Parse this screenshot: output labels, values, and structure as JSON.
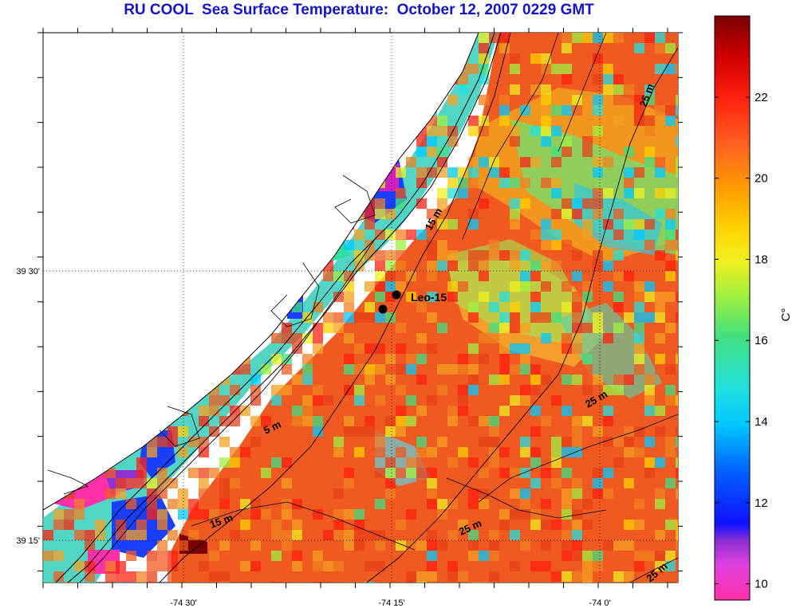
{
  "title": "RU COOL  Sea Surface Temperature:  October 12, 2007 0229 GMT",
  "colorbar": {
    "unit_label": "C°",
    "ticks": [
      "10",
      "12",
      "14",
      "16",
      "18",
      "20",
      "22"
    ],
    "range": [
      9.6,
      24.0
    ]
  },
  "axes": {
    "lon_labels": [
      "-74 30'",
      "-74 15'",
      "-74 0'"
    ],
    "lat_labels": [
      "39 30'",
      "39 15'"
    ]
  },
  "station": {
    "label": "Leo-15"
  },
  "depth_contour_labels": [
    "5 m",
    "15 m",
    "15 m",
    "25 m",
    "25 m",
    "25 m",
    "25 m"
  ],
  "colors": {
    "title": "#1414c8",
    "warm": "#f04a1e",
    "land": "#ffffff",
    "contour": "#000000"
  }
}
